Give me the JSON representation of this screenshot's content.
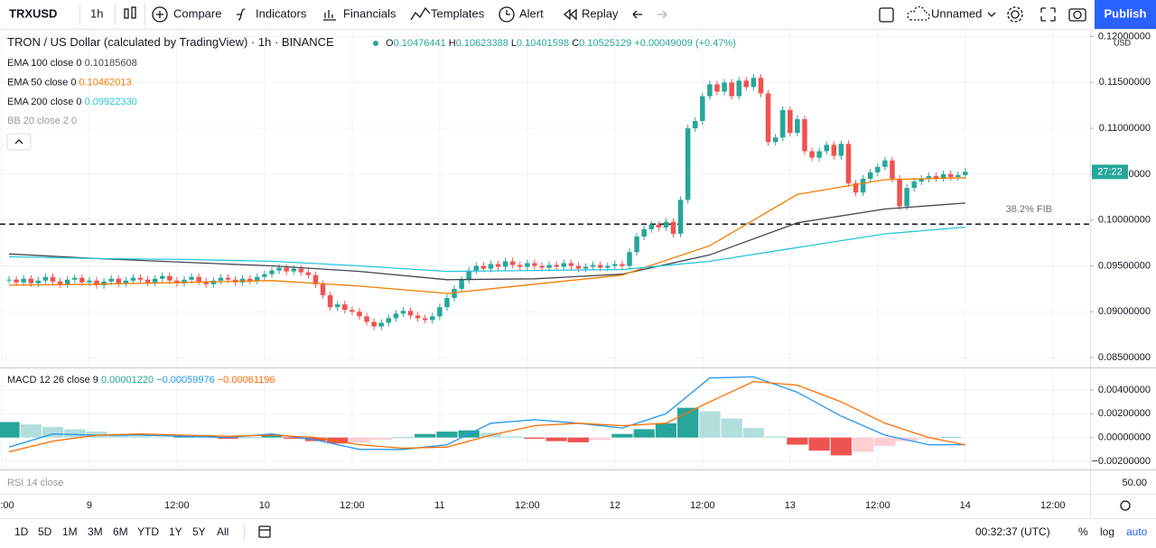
{
  "toolbar": {
    "symbol": "TRXUSD",
    "interval": "1h",
    "items": [
      "Compare",
      "Indicators",
      "Financials",
      "Templates",
      "Alert",
      "Replay"
    ],
    "layout_name": "Unnamed",
    "publish": "Publish"
  },
  "header": {
    "title": "TRON / US Dollar (calculated by TradingView) · 1h · BINANCE",
    "ohlc": [
      [
        "O",
        "0.10476441"
      ],
      [
        "H",
        "0.10623388"
      ],
      [
        "L",
        "0.10401598"
      ],
      [
        "C",
        "0.10525129"
      ]
    ],
    "change": "+0.00049009 (+0.47%)",
    "hidden_indicator": "BB 20 close 2 0",
    "currency": "USD"
  },
  "chart_data": [
    {
      "type": "candlestick",
      "up_color": "#26a69a",
      "down_color": "#ef5350",
      "close": [
        0.0935,
        0.0932,
        0.0936,
        0.0931,
        0.0934,
        0.0938,
        0.0933,
        0.093,
        0.0935,
        0.0937,
        0.0932,
        0.0934,
        0.0929,
        0.0933,
        0.0936,
        0.0931,
        0.0934,
        0.0937,
        0.0935,
        0.0932,
        0.0936,
        0.0939,
        0.0934,
        0.0931,
        0.0935,
        0.0938,
        0.0933,
        0.093,
        0.0934,
        0.0937,
        0.0935,
        0.0932,
        0.0936,
        0.0934,
        0.0938,
        0.0941,
        0.0945,
        0.0948,
        0.0944,
        0.0947,
        0.0943,
        0.094,
        0.093,
        0.0918,
        0.0905,
        0.0908,
        0.0902,
        0.09,
        0.0895,
        0.0889,
        0.0884,
        0.0888,
        0.0893,
        0.0898,
        0.0901,
        0.0896,
        0.0893,
        0.0891,
        0.0895,
        0.0905,
        0.0915,
        0.0925,
        0.0935,
        0.0945,
        0.095,
        0.0947,
        0.0952,
        0.0949,
        0.0955,
        0.0951,
        0.0949,
        0.0953,
        0.095,
        0.0948,
        0.0951,
        0.0949,
        0.0953,
        0.095,
        0.0947,
        0.0949,
        0.0951,
        0.0948,
        0.095,
        0.0952,
        0.095,
        0.0965,
        0.0982,
        0.099,
        0.0995,
        0.0992,
        0.0998,
        0.0985,
        0.1022,
        0.11,
        0.1108,
        0.1135,
        0.1148,
        0.114,
        0.115,
        0.1135,
        0.1152,
        0.1145,
        0.1155,
        0.1138,
        0.1085,
        0.109,
        0.112,
        0.1095,
        0.111,
        0.1075,
        0.1068,
        0.1075,
        0.1082,
        0.107,
        0.1083,
        0.104,
        0.103,
        0.1045,
        0.1052,
        0.1058,
        0.1065,
        0.1045,
        0.1015,
        0.1035,
        0.1042,
        0.1045,
        0.1048,
        0.1046,
        0.105,
        0.1047,
        0.1049,
        0.10525129
      ],
      "series": [
        {
          "name": "EMA 100 close 0",
          "last_label": "0.10185608",
          "color": "#434651",
          "x": [
            0,
            12,
            24,
            36,
            48,
            60,
            72,
            84,
            96,
            108,
            120,
            131
          ],
          "values": [
            0.0963,
            0.0958,
            0.0954,
            0.095,
            0.0944,
            0.0935,
            0.0936,
            0.0941,
            0.0962,
            0.0997,
            0.1012,
            0.10185608
          ]
        },
        {
          "name": "EMA 50 close 0",
          "last_label": "0.10462013",
          "color": "#f57c00",
          "x": [
            0,
            12,
            24,
            36,
            48,
            60,
            72,
            84,
            96,
            108,
            120,
            131
          ],
          "values": [
            0.0929,
            0.093,
            0.0932,
            0.0934,
            0.0928,
            0.092,
            0.093,
            0.094,
            0.0972,
            0.1028,
            0.1044,
            0.10462013
          ]
        },
        {
          "name": "EMA 200 close 0",
          "last_label": "0.09922330",
          "color": "#26c6da",
          "x": [
            0,
            12,
            24,
            36,
            48,
            60,
            72,
            84,
            96,
            108,
            120,
            131
          ],
          "values": [
            0.096,
            0.0958,
            0.0957,
            0.0955,
            0.095,
            0.0944,
            0.0945,
            0.0946,
            0.0955,
            0.097,
            0.0985,
            0.0992233
          ]
        }
      ],
      "fib": {
        "label": "38.2% FIB",
        "value": 0.09955
      },
      "countdown": "27:22",
      "countdown_color": "#26a69a",
      "xlim": [
        -1.24,
        148.1
      ],
      "ylim": [
        0.08393,
        0.12074
      ],
      "yticks": [
        {
          "value": 0.085,
          "label": "0.08500000"
        },
        {
          "value": 0.09,
          "label": "0.09000000"
        },
        {
          "value": 0.095,
          "label": "0.09500000"
        },
        {
          "value": 0.1,
          "label": "0.10000000"
        },
        {
          "value": 0.105,
          "label": "0.10500000"
        },
        {
          "value": 0.11,
          "label": "0.11000000"
        },
        {
          "value": 0.115,
          "label": "0.11500000"
        },
        {
          "value": 0.12,
          "label": "0.12000000"
        }
      ],
      "xticks": [
        {
          "value": -1,
          "label": ":00"
        },
        {
          "value": 11,
          "label": "9"
        },
        {
          "value": 23,
          "label": "12:00"
        },
        {
          "value": 35,
          "label": "10"
        },
        {
          "value": 47,
          "label": "12:00"
        },
        {
          "value": 59,
          "label": "11"
        },
        {
          "value": 71,
          "label": "12:00"
        },
        {
          "value": 83,
          "label": "12"
        },
        {
          "value": 95,
          "label": "12:00"
        },
        {
          "value": 107,
          "label": "13"
        },
        {
          "value": 119,
          "label": "12:00"
        },
        {
          "value": 131,
          "label": "14"
        },
        {
          "value": 143,
          "label": "12:00"
        }
      ],
      "grid": true
    },
    {
      "type": "macd",
      "name": "MACD 12 26 close 9",
      "histogram": {
        "last_label": "0.00001220",
        "up_color": "#26a69a",
        "down_color": "#ef5350",
        "x": [
          0,
          3,
          6,
          9,
          12,
          15,
          18,
          21,
          24,
          27,
          30,
          33,
          36,
          39,
          42,
          45,
          48,
          51,
          54,
          57,
          60,
          63,
          66,
          69,
          72,
          75,
          78,
          81,
          84,
          87,
          90,
          93,
          96,
          99,
          102,
          105,
          108,
          111,
          114,
          117,
          120,
          123,
          126,
          129
        ],
        "values": [
          0.0013,
          0.0011,
          0.0009,
          0.0007,
          0.0005,
          0.0003,
          0.0001,
          0.0,
          0.0001,
          0.0,
          -0.0001,
          0.0,
          0.0002,
          -0.0001,
          -0.0003,
          -0.0005,
          -0.0004,
          -0.0002,
          0.0,
          0.0003,
          0.0005,
          0.0006,
          0.0004,
          0.0001,
          -0.0001,
          -0.0003,
          -0.0004,
          -0.0002,
          0.0003,
          0.0007,
          0.0012,
          0.0025,
          0.0022,
          0.0016,
          0.0008,
          0.0001,
          -0.0006,
          -0.0011,
          -0.0015,
          -0.0012,
          -0.0007,
          -0.0003,
          -0.0001,
          1.22e-05
        ]
      },
      "series": [
        {
          "last_label": "−0.00059976",
          "color": "#2196f3",
          "x": [
            0,
            6,
            12,
            18,
            24,
            30,
            36,
            42,
            48,
            54,
            60,
            66,
            72,
            78,
            84,
            90,
            96,
            102,
            108,
            114,
            120,
            126,
            131
          ],
          "values": [
            -0.0008,
            0.0003,
            0.0002,
            0.0002,
            0.0001,
            0.0,
            0.0003,
            -0.0002,
            -0.001,
            -0.001,
            -0.0006,
            0.0012,
            0.0015,
            0.0012,
            0.0008,
            0.002,
            0.005,
            0.0051,
            0.0038,
            0.0018,
            0.0002,
            -0.0006,
            -0.00059976
          ]
        },
        {
          "last_label": "−0.00061196",
          "color": "#ff6d00",
          "x": [
            0,
            6,
            12,
            18,
            24,
            30,
            36,
            42,
            48,
            54,
            60,
            66,
            72,
            78,
            84,
            90,
            96,
            102,
            108,
            114,
            120,
            126,
            131
          ],
          "values": [
            -0.0012,
            -0.0003,
            0.0002,
            0.0003,
            0.0002,
            0.0001,
            0.0002,
            0.0,
            -0.0006,
            -0.0009,
            -0.0008,
            0.0002,
            0.001,
            0.0012,
            0.001,
            0.0012,
            0.003,
            0.0047,
            0.0044,
            0.003,
            0.0012,
            0.0,
            -0.00061196
          ]
        }
      ],
      "xlim": [
        -1.24,
        148.1
      ],
      "ylim": [
        -0.00268,
        0.00581
      ],
      "yticks": [
        {
          "value": 0.004,
          "label": "0.00400000"
        },
        {
          "value": 0.002,
          "label": "0.00200000"
        },
        {
          "value": 0,
          "label": "0.00000000"
        },
        {
          "value": -0.002,
          "label": "−0.00200000"
        }
      ]
    }
  ],
  "rsi": {
    "name": "RSI 14 close",
    "tick": "50.00"
  },
  "bottom_bar": {
    "ranges": [
      "1D",
      "5D",
      "1M",
      "3M",
      "6M",
      "YTD",
      "1Y",
      "5Y",
      "All"
    ],
    "clock": "00:32:37 (UTC)",
    "scale_options": [
      "%",
      "log",
      "auto"
    ]
  }
}
